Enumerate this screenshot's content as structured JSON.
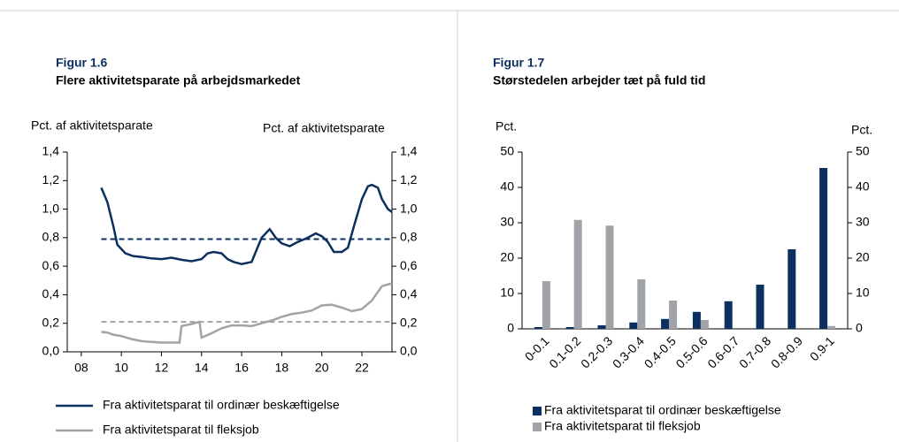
{
  "chart_data": [
    {
      "type": "line",
      "label": "Figur 1.6",
      "title": "Flere aktivitetsparate på arbejdsmarkedet",
      "ylabel": "Pct. af aktivitetsparate",
      "y2label": "Pct. af aktivitetsparate",
      "xlim": [
        2007.3,
        2023.5
      ],
      "xticks": [
        {
          "value": 2008,
          "label": "08"
        },
        {
          "value": 2010,
          "label": "10"
        },
        {
          "value": 2012,
          "label": "12"
        },
        {
          "value": 2014,
          "label": "14"
        },
        {
          "value": 2016,
          "label": "16"
        },
        {
          "value": 2018,
          "label": "18"
        },
        {
          "value": 2020,
          "label": "20"
        },
        {
          "value": 2022,
          "label": "22"
        }
      ],
      "ylim": [
        0,
        1.4
      ],
      "yticks": [
        {
          "value": 0,
          "label": "0,0"
        },
        {
          "value": 0.2,
          "label": "0,2"
        },
        {
          "value": 0.4,
          "label": "0,4"
        },
        {
          "value": 0.6,
          "label": "0,6"
        },
        {
          "value": 0.8,
          "label": "0,8"
        },
        {
          "value": 1.0,
          "label": "1,0"
        },
        {
          "value": 1.2,
          "label": "1,2"
        },
        {
          "value": 1.4,
          "label": "1,4"
        }
      ],
      "y2lim": [
        0,
        1.4
      ],
      "y2ticks": [
        {
          "value": 0,
          "label": "0,0"
        },
        {
          "value": 0.2,
          "label": "0,2"
        },
        {
          "value": 0.4,
          "label": "0,4"
        },
        {
          "value": 0.6,
          "label": "0,6"
        },
        {
          "value": 0.8,
          "label": "0,8"
        },
        {
          "value": 1.0,
          "label": "1,0"
        },
        {
          "value": 1.2,
          "label": "1,2"
        },
        {
          "value": 1.4,
          "label": "1,4"
        }
      ],
      "series": [
        {
          "name": "Fra aktivitetsparat til ordinær beskæftigelse",
          "color": "#0b2f5e",
          "x": [
            2009.0,
            2009.3,
            2009.6,
            2009.8,
            2010.2,
            2010.6,
            2011.0,
            2011.5,
            2012.0,
            2012.5,
            2013.0,
            2013.5,
            2014.0,
            2014.3,
            2014.6,
            2015.0,
            2015.3,
            2015.6,
            2016.0,
            2016.5,
            2016.7,
            2017.0,
            2017.4,
            2017.7,
            2018.0,
            2018.4,
            2018.8,
            2019.3,
            2019.7,
            2020.0,
            2020.3,
            2020.6,
            2021.0,
            2021.3,
            2021.6,
            2022.0,
            2022.3,
            2022.5,
            2022.8,
            2023.0,
            2023.3,
            2023.5
          ],
          "values": [
            1.15,
            1.05,
            0.88,
            0.75,
            0.69,
            0.67,
            0.665,
            0.655,
            0.65,
            0.66,
            0.645,
            0.635,
            0.65,
            0.69,
            0.7,
            0.69,
            0.65,
            0.63,
            0.615,
            0.63,
            0.7,
            0.8,
            0.86,
            0.8,
            0.76,
            0.74,
            0.77,
            0.8,
            0.83,
            0.81,
            0.77,
            0.7,
            0.7,
            0.73,
            0.88,
            1.07,
            1.16,
            1.17,
            1.15,
            1.07,
            1.0,
            0.98
          ]
        },
        {
          "name": "Fra aktivitetsparat til fleksjob",
          "color": "#a0a4a8",
          "x": [
            2009.0,
            2009.3,
            2009.6,
            2010.0,
            2010.5,
            2011.0,
            2011.5,
            2012.0,
            2012.5,
            2012.9,
            2013.0,
            2013.5,
            2013.9,
            2014.0,
            2014.5,
            2015.0,
            2015.5,
            2016.0,
            2016.5,
            2017.0,
            2017.5,
            2018.0,
            2018.5,
            2019.0,
            2019.5,
            2020.0,
            2020.5,
            2021.0,
            2021.5,
            2022.0,
            2022.5,
            2023.0,
            2023.5
          ],
          "values": [
            0.14,
            0.135,
            0.12,
            0.11,
            0.09,
            0.075,
            0.07,
            0.065,
            0.065,
            0.065,
            0.18,
            0.195,
            0.21,
            0.1,
            0.13,
            0.165,
            0.185,
            0.185,
            0.18,
            0.2,
            0.22,
            0.245,
            0.265,
            0.275,
            0.29,
            0.325,
            0.33,
            0.31,
            0.285,
            0.3,
            0.36,
            0.46,
            0.48
          ]
        }
      ],
      "reference_lines": [
        {
          "value": 0.79,
          "color": "#0b2f5e",
          "style": "dashed"
        },
        {
          "value": 0.21,
          "color": "#a0a4a8",
          "style": "dashed"
        }
      ]
    },
    {
      "type": "bar",
      "label": "Figur 1.7",
      "title": "Størstedelen arbejder tæt på fuld tid",
      "ylabel": "Pct.",
      "y2label": "Pct.",
      "categories": [
        "0-0.1",
        "0.1-0.2",
        "0.2-0.3",
        "0.3-0.4",
        "0.4-0.5",
        "0.5-0.6",
        "0.6-0.7",
        "0.7-0.8",
        "0.8-0.9",
        "0.9-1"
      ],
      "ylim": [
        0,
        50
      ],
      "yticks": [
        0,
        10,
        20,
        30,
        40,
        50
      ],
      "y2lim": [
        0,
        50
      ],
      "y2ticks": [
        0,
        10,
        20,
        30,
        40,
        50
      ],
      "series": [
        {
          "name": "Fra aktivitetsparat til ordinær beskæftigelse",
          "color": "#0b2f5e",
          "values": [
            0.5,
            0.5,
            1,
            1.8,
            2.8,
            4.8,
            7.8,
            12.5,
            22.5,
            45.5
          ]
        },
        {
          "name": "Fra aktivitetsparat til fleksjob",
          "color": "#a0a4a8",
          "values": [
            13.5,
            30.8,
            29.2,
            14,
            8,
            2.5,
            0,
            0,
            0,
            0.8
          ]
        }
      ]
    }
  ]
}
